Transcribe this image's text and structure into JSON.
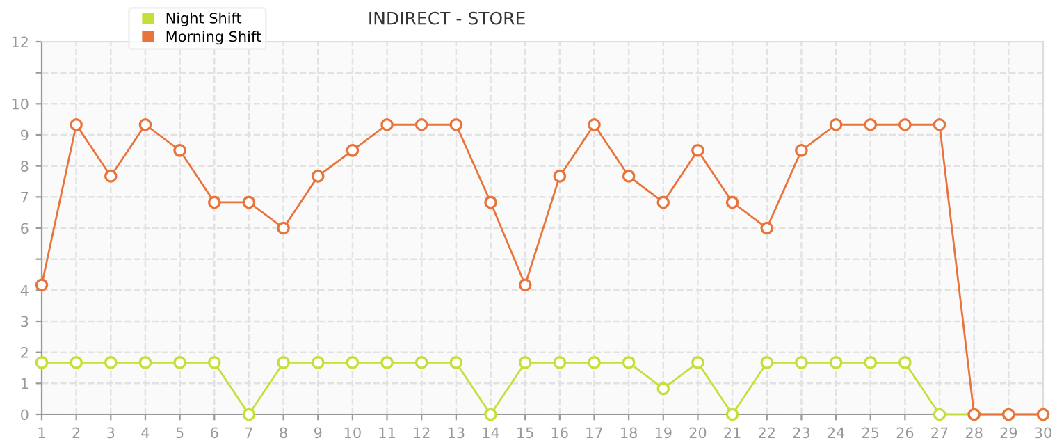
{
  "chart_data": {
    "type": "line",
    "title": "INDIRECT - STORE",
    "categories": [
      "1",
      "2",
      "3",
      "4",
      "5",
      "6",
      "7",
      "8",
      "9",
      "10",
      "11",
      "12",
      "13",
      "14",
      "15",
      "16",
      "17",
      "18",
      "19",
      "20",
      "21",
      "22",
      "23",
      "24",
      "25",
      "26",
      "27",
      "28",
      "29",
      "30"
    ],
    "series": [
      {
        "name": "Night Shift",
        "color": "#c3e03a",
        "values": [
          1.67,
          1.67,
          1.67,
          1.67,
          1.67,
          1.67,
          0,
          1.67,
          1.67,
          1.67,
          1.67,
          1.67,
          1.67,
          0,
          1.67,
          1.67,
          1.67,
          1.67,
          0.83,
          1.67,
          0,
          1.67,
          1.67,
          1.67,
          1.67,
          1.67,
          0,
          0,
          0,
          0
        ]
      },
      {
        "name": "Morning Shift",
        "color": "#e8743b",
        "values": [
          4.17,
          9.33,
          7.67,
          9.33,
          8.5,
          6.83,
          6.83,
          6,
          7.67,
          8.5,
          9.33,
          9.33,
          9.33,
          6.83,
          4.17,
          7.67,
          9.33,
          7.67,
          6.83,
          8.5,
          6.83,
          6,
          8.5,
          9.33,
          9.33,
          9.33,
          9.33,
          0,
          0,
          0
        ]
      }
    ],
    "ylim": [
      0,
      12
    ],
    "yticks": [
      0,
      1,
      2,
      3,
      4,
      {
        "value": 5,
        "label": null
      },
      6,
      7,
      8,
      9,
      10,
      {
        "value": 11,
        "label": null
      },
      12
    ],
    "grid": true,
    "legend": "top left",
    "marker": "circle",
    "line_style": "solid"
  }
}
